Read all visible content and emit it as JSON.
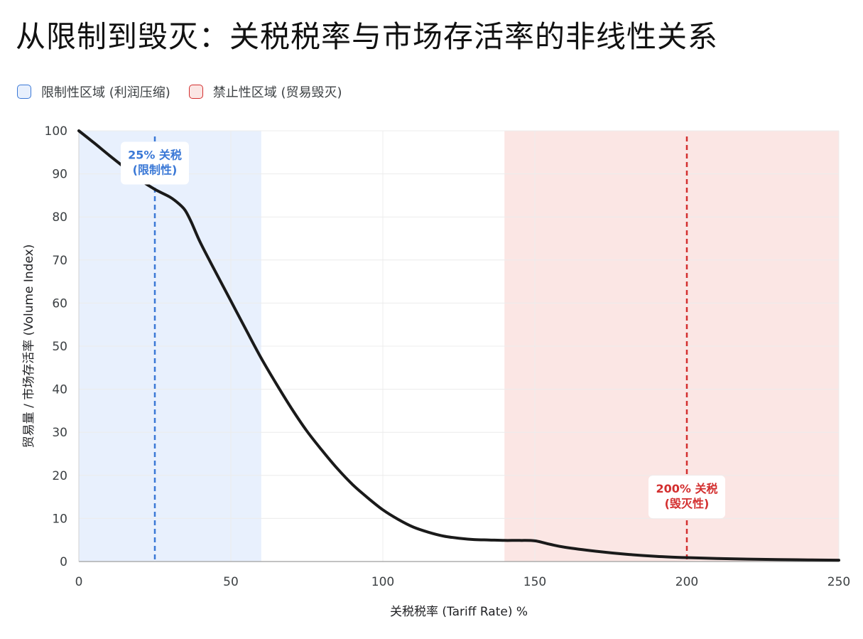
{
  "title": "从限制到毁灭：关税税率与市场存活率的非线性关系",
  "legend": [
    {
      "label": "限制性区域 (利润压缩)",
      "fill": "#e8f0fd",
      "border": "#3a78d6"
    },
    {
      "label": "禁止性区域 (贸易毁灭)",
      "fill": "#fbe6e4",
      "border": "#d32f2f"
    }
  ],
  "chart_data": {
    "type": "line",
    "xlabel": "关税税率 (Tariff Rate) %",
    "ylabel": "贸易量 / 市场存活率 (Volume Index)",
    "xlim": [
      0,
      250
    ],
    "ylim": [
      0,
      100
    ],
    "x_ticks": [
      0,
      50,
      100,
      150,
      200,
      250
    ],
    "y_ticks": [
      0,
      10,
      20,
      30,
      40,
      50,
      60,
      70,
      80,
      90,
      100
    ],
    "grid": true,
    "legend_position": "top-left",
    "line_color": "#1a1a1a",
    "regions": [
      {
        "name": "限制性区域 (利润压缩)",
        "x_start": 0,
        "x_end": 60,
        "color": "#e8f0fd"
      },
      {
        "name": "禁止性区域 (贸易毁灭)",
        "x_start": 140,
        "x_end": 250,
        "color": "#fbe6e4"
      }
    ],
    "reference_lines": [
      {
        "x": 25,
        "color": "#3a78d6",
        "label_lines": [
          "25% 关税",
          "(限制性)"
        ],
        "label_y": 92.5
      },
      {
        "x": 200,
        "color": "#d32f2f",
        "label_lines": [
          "200% 关税",
          "(毁灭性)"
        ],
        "label_y": 15
      }
    ],
    "series": [
      {
        "x": [
          0,
          5,
          10,
          15,
          20,
          25,
          30,
          33,
          35,
          37,
          40,
          45,
          50,
          55,
          60,
          65,
          70,
          75,
          80,
          85,
          90,
          95,
          100,
          105,
          110,
          115,
          120,
          125,
          130,
          135,
          140,
          145,
          150,
          155,
          160,
          170,
          180,
          190,
          200,
          210,
          220,
          230,
          240,
          250
        ],
        "y": [
          100,
          97.2,
          94.3,
          91.5,
          88.7,
          86.4,
          84.6,
          83,
          81.5,
          78.8,
          74,
          67.2,
          60.5,
          53.8,
          47.2,
          41.2,
          35.5,
          30.3,
          25.8,
          21.6,
          17.9,
          14.8,
          12.0,
          9.8,
          8.0,
          6.8,
          5.9,
          5.4,
          5.1,
          5.0,
          4.9,
          4.9,
          4.8,
          4.0,
          3.3,
          2.4,
          1.7,
          1.2,
          0.9,
          0.7,
          0.55,
          0.45,
          0.38,
          0.3
        ]
      }
    ]
  }
}
